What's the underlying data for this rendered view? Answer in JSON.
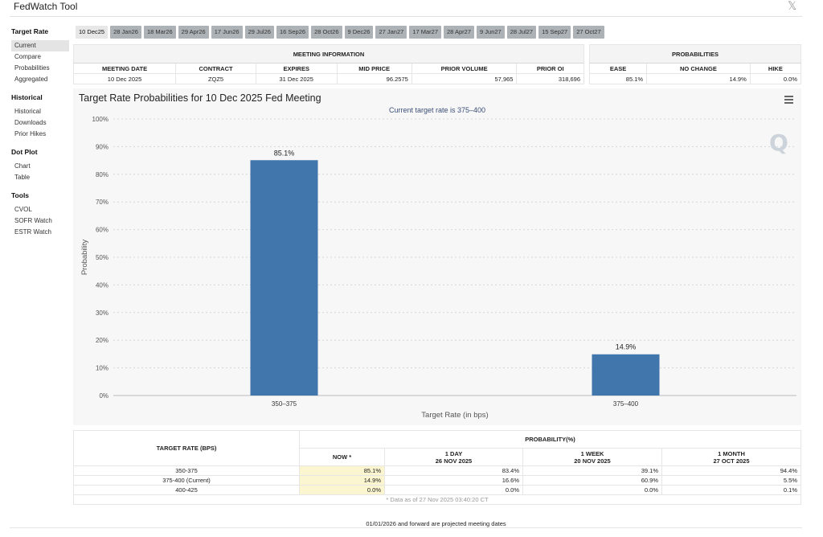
{
  "app": {
    "title": "FedWatch Tool",
    "close_icon": "x-logo-icon"
  },
  "sidebar": [
    {
      "heading": "Target Rate",
      "items": [
        {
          "label": "Current",
          "active": true
        },
        {
          "label": "Compare"
        },
        {
          "label": "Probabilities"
        },
        {
          "label": "Aggregated"
        }
      ]
    },
    {
      "heading": "Historical",
      "items": [
        {
          "label": "Historical"
        },
        {
          "label": "Downloads"
        },
        {
          "label": "Prior Hikes"
        }
      ]
    },
    {
      "heading": "Dot Plot",
      "items": [
        {
          "label": "Chart"
        },
        {
          "label": "Table"
        }
      ]
    },
    {
      "heading": "Tools",
      "items": [
        {
          "label": "CVOL"
        },
        {
          "label": "SOFR Watch"
        },
        {
          "label": "ESTR Watch"
        }
      ]
    }
  ],
  "meeting_tabs": [
    {
      "label": "10 Dec25",
      "active": true
    },
    {
      "label": "28 Jan26"
    },
    {
      "label": "18 Mar26"
    },
    {
      "label": "29 Apr26"
    },
    {
      "label": "17 Jun26"
    },
    {
      "label": "29 Jul26"
    },
    {
      "label": "16 Sep26"
    },
    {
      "label": "28 Oct26"
    },
    {
      "label": "9 Dec26"
    },
    {
      "label": "27 Jan27"
    },
    {
      "label": "17 Mar27"
    },
    {
      "label": "28 Apr27"
    },
    {
      "label": "9 Jun27"
    },
    {
      "label": "28 Jul27"
    },
    {
      "label": "15 Sep27"
    },
    {
      "label": "27 Oct27"
    }
  ],
  "meeting_info": {
    "caption": "MEETING INFORMATION",
    "columns": [
      "MEETING DATE",
      "CONTRACT",
      "EXPIRES",
      "MID PRICE",
      "PRIOR VOLUME",
      "PRIOR OI"
    ],
    "row": [
      "10 Dec 2025",
      "ZQZ5",
      "31 Dec 2025",
      "96.2575",
      "57,965",
      "318,696"
    ]
  },
  "probabilities": {
    "caption": "PROBABILITIES",
    "columns": [
      "EASE",
      "NO CHANGE",
      "HIKE"
    ],
    "row": [
      "85.1%",
      "14.9%",
      "0.0%"
    ]
  },
  "chart": {
    "title": "Target Rate Probabilities for 10 Dec 2025 Fed Meeting",
    "subtitle": "Current target rate is 375–400",
    "menu_icon": "hamburger-menu-icon",
    "logo_letter": "Q",
    "bar_color": "#4176ad"
  },
  "chart_data": {
    "type": "bar",
    "categories": [
      "350–375",
      "375–400"
    ],
    "values": [
      85.1,
      14.9
    ],
    "data_labels": [
      "85.1%",
      "14.9%"
    ],
    "xlabel": "Target Rate (in bps)",
    "ylabel": "Probability",
    "ylim": [
      0,
      100
    ],
    "y_ticks": [
      "0%",
      "10%",
      "20%",
      "30%",
      "40%",
      "50%",
      "60%",
      "70%",
      "80%",
      "90%",
      "100%"
    ],
    "grid": true
  },
  "prob_table": {
    "target_header": "TARGET RATE (BPS)",
    "prob_header": "PROBABILITY(%)",
    "periods": [
      {
        "label": "NOW *",
        "date": ""
      },
      {
        "label": "1 DAY",
        "date": "26 NOV 2025"
      },
      {
        "label": "1 WEEK",
        "date": "20 NOV 2025"
      },
      {
        "label": "1 MONTH",
        "date": "27 OCT 2025"
      }
    ],
    "rows": [
      {
        "rate": "350-375",
        "values": [
          "85.1%",
          "83.4%",
          "39.1%",
          "94.4%"
        ]
      },
      {
        "rate": "375-400 (Current)",
        "values": [
          "14.9%",
          "16.6%",
          "60.9%",
          "5.5%"
        ]
      },
      {
        "rate": "400-425",
        "values": [
          "0.0%",
          "0.0%",
          "0.0%",
          "0.1%"
        ]
      }
    ],
    "note": "* Data as of 27 Nov 2025 03:40:20 CT"
  },
  "footer": {
    "note": "01/01/2026 and forward are projected meeting dates"
  }
}
